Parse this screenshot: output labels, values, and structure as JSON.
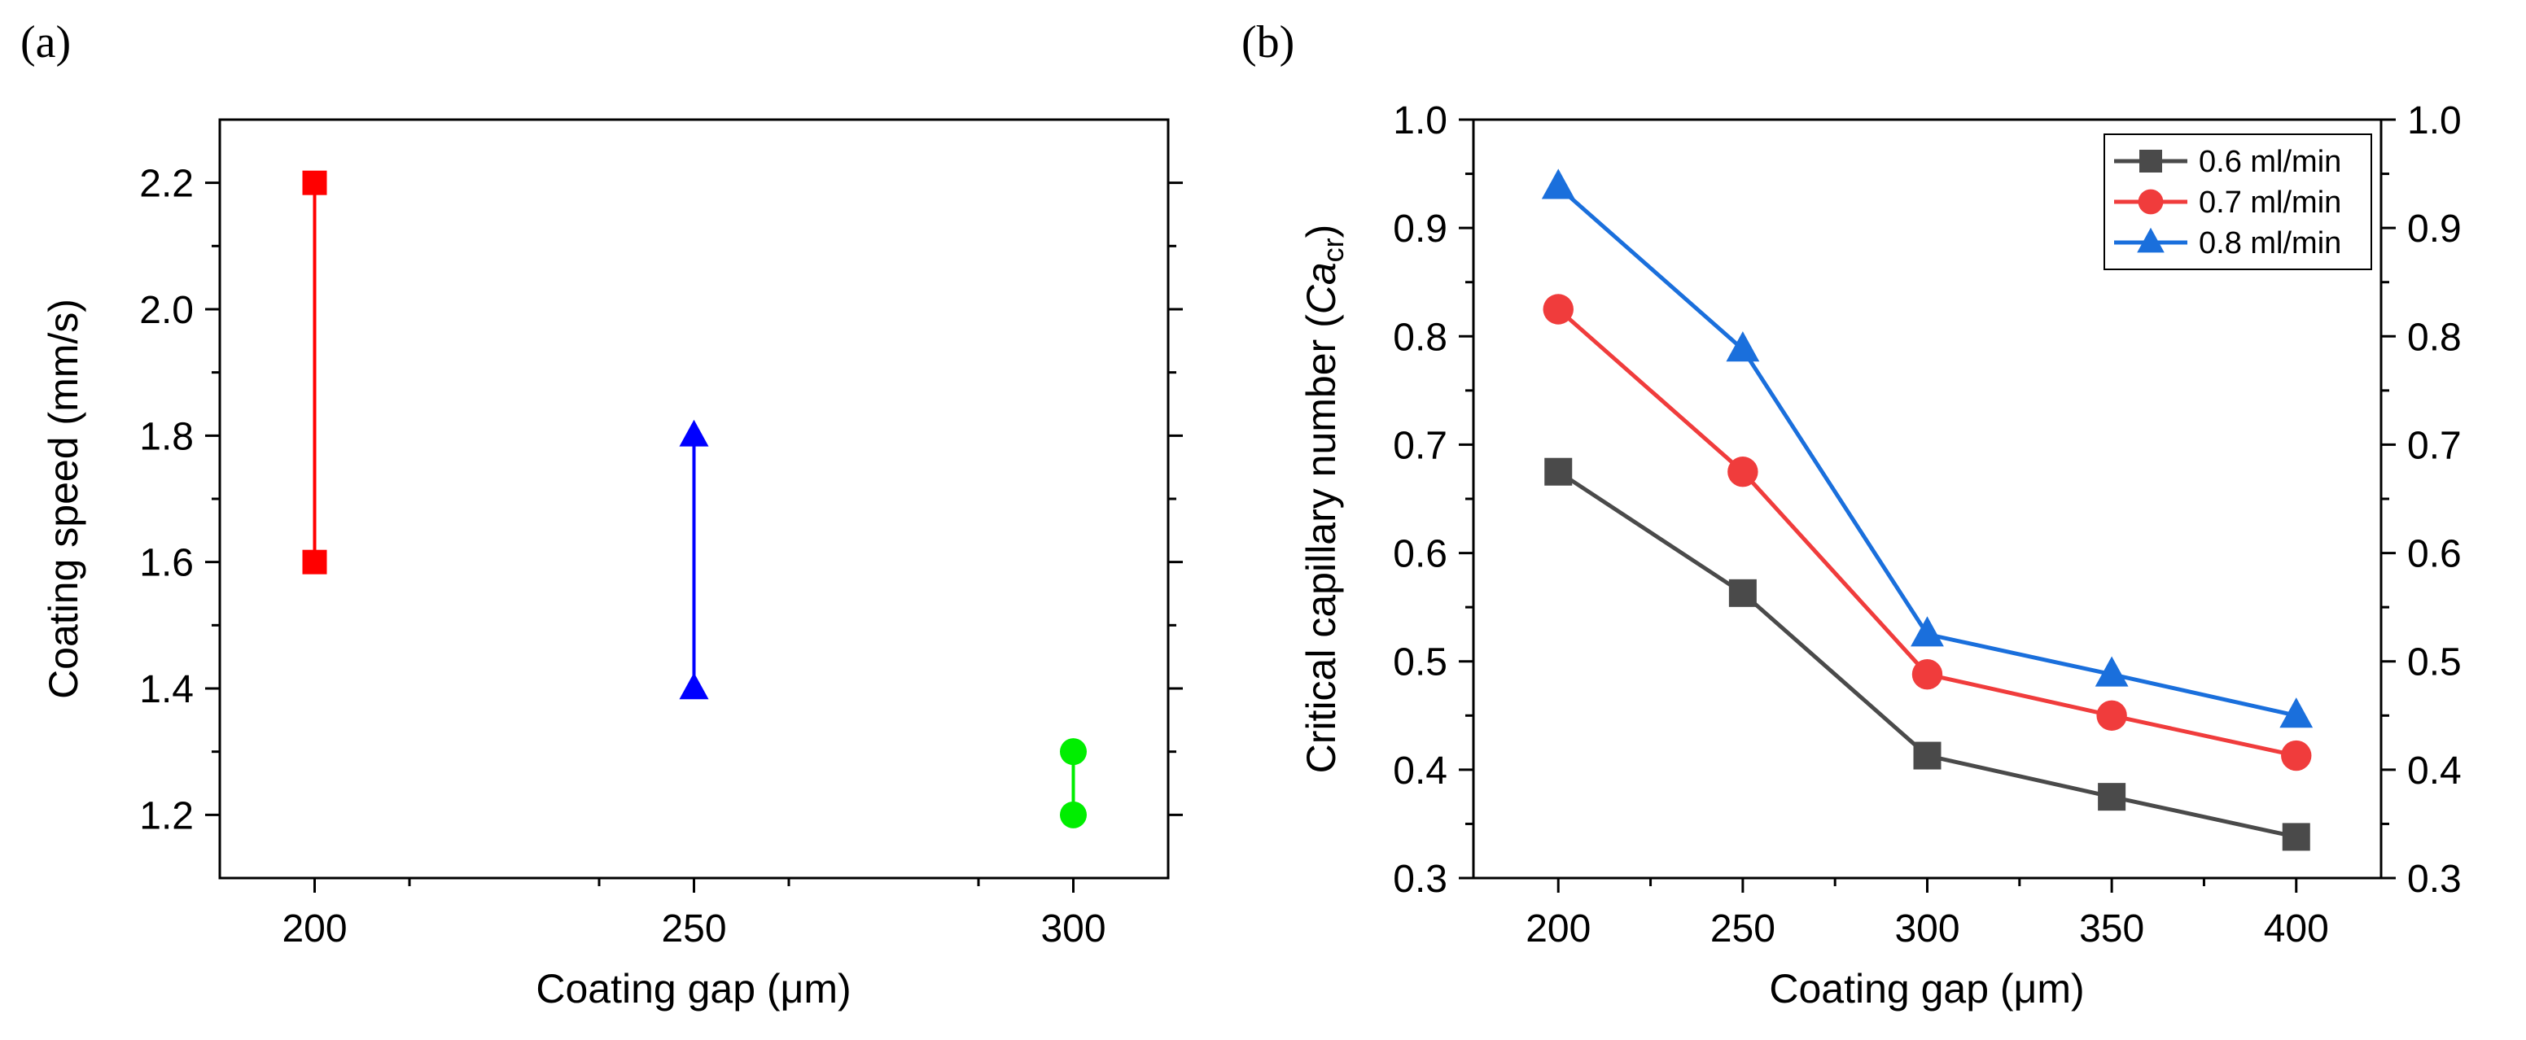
{
  "panels": {
    "a": {
      "label": "(a)"
    },
    "b": {
      "label": "(b)"
    }
  },
  "chart_data": [
    {
      "id": "a",
      "type": "scatter",
      "title": "",
      "xlabel": "Coating gap (μm)",
      "ylabel": "Coating speed (mm/s)",
      "xlim": [
        187.5,
        312.5
      ],
      "ylim": [
        1.1,
        2.3
      ],
      "xticks": [
        200,
        250,
        300
      ],
      "xtick_labels": [
        "200",
        "250",
        "300"
      ],
      "yticks": [
        1.2,
        1.4,
        1.6,
        1.8,
        2.0,
        2.2
      ],
      "ytick_labels": [
        "1.2",
        "1.4",
        "1.6",
        "1.8",
        "2.0",
        "2.2"
      ],
      "series": [
        {
          "name": "200",
          "color": "#ff0000",
          "marker": "square",
          "x": [
            200,
            200
          ],
          "values": [
            1.6,
            2.2
          ]
        },
        {
          "name": "250",
          "color": "#0000ff",
          "marker": "triangle",
          "x": [
            250,
            250
          ],
          "values": [
            1.4,
            1.8
          ]
        },
        {
          "name": "300",
          "color": "#00ee00",
          "marker": "circle",
          "x": [
            300,
            300
          ],
          "values": [
            1.2,
            1.3
          ]
        }
      ]
    },
    {
      "id": "b",
      "type": "line",
      "title": "",
      "xlabel": "Coating gap (μm)",
      "ylabel_prefix": "Critical capillary number (",
      "ylabel_italic": "Ca",
      "ylabel_sub": "cr",
      "ylabel_suffix": ")",
      "x": [
        200,
        250,
        300,
        350,
        400
      ],
      "xlim": [
        177,
        423
      ],
      "ylim": [
        0.3,
        1.0
      ],
      "xticks": [
        200,
        250,
        300,
        350,
        400
      ],
      "xtick_labels": [
        "200",
        "250",
        "300",
        "350",
        "400"
      ],
      "yticks": [
        0.3,
        0.4,
        0.5,
        0.6,
        0.7,
        0.8,
        0.9,
        1.0
      ],
      "ytick_labels": [
        "0.3",
        "0.4",
        "0.5",
        "0.6",
        "0.7",
        "0.8",
        "0.9",
        "1.0"
      ],
      "legend_position": "top-right",
      "series": [
        {
          "name": "0.6 ml/min",
          "color": "#4a4a4a",
          "marker": "square",
          "values": [
            0.675,
            0.563,
            0.413,
            0.375,
            0.338
          ]
        },
        {
          "name": "0.7 ml/min",
          "color": "#f03c3c",
          "marker": "circle",
          "values": [
            0.825,
            0.675,
            0.488,
            0.45,
            0.413
          ]
        },
        {
          "name": "0.8 ml/min",
          "color": "#1a6fdc",
          "marker": "triangle",
          "values": [
            0.938,
            0.788,
            0.525,
            0.488,
            0.45
          ]
        }
      ]
    }
  ]
}
